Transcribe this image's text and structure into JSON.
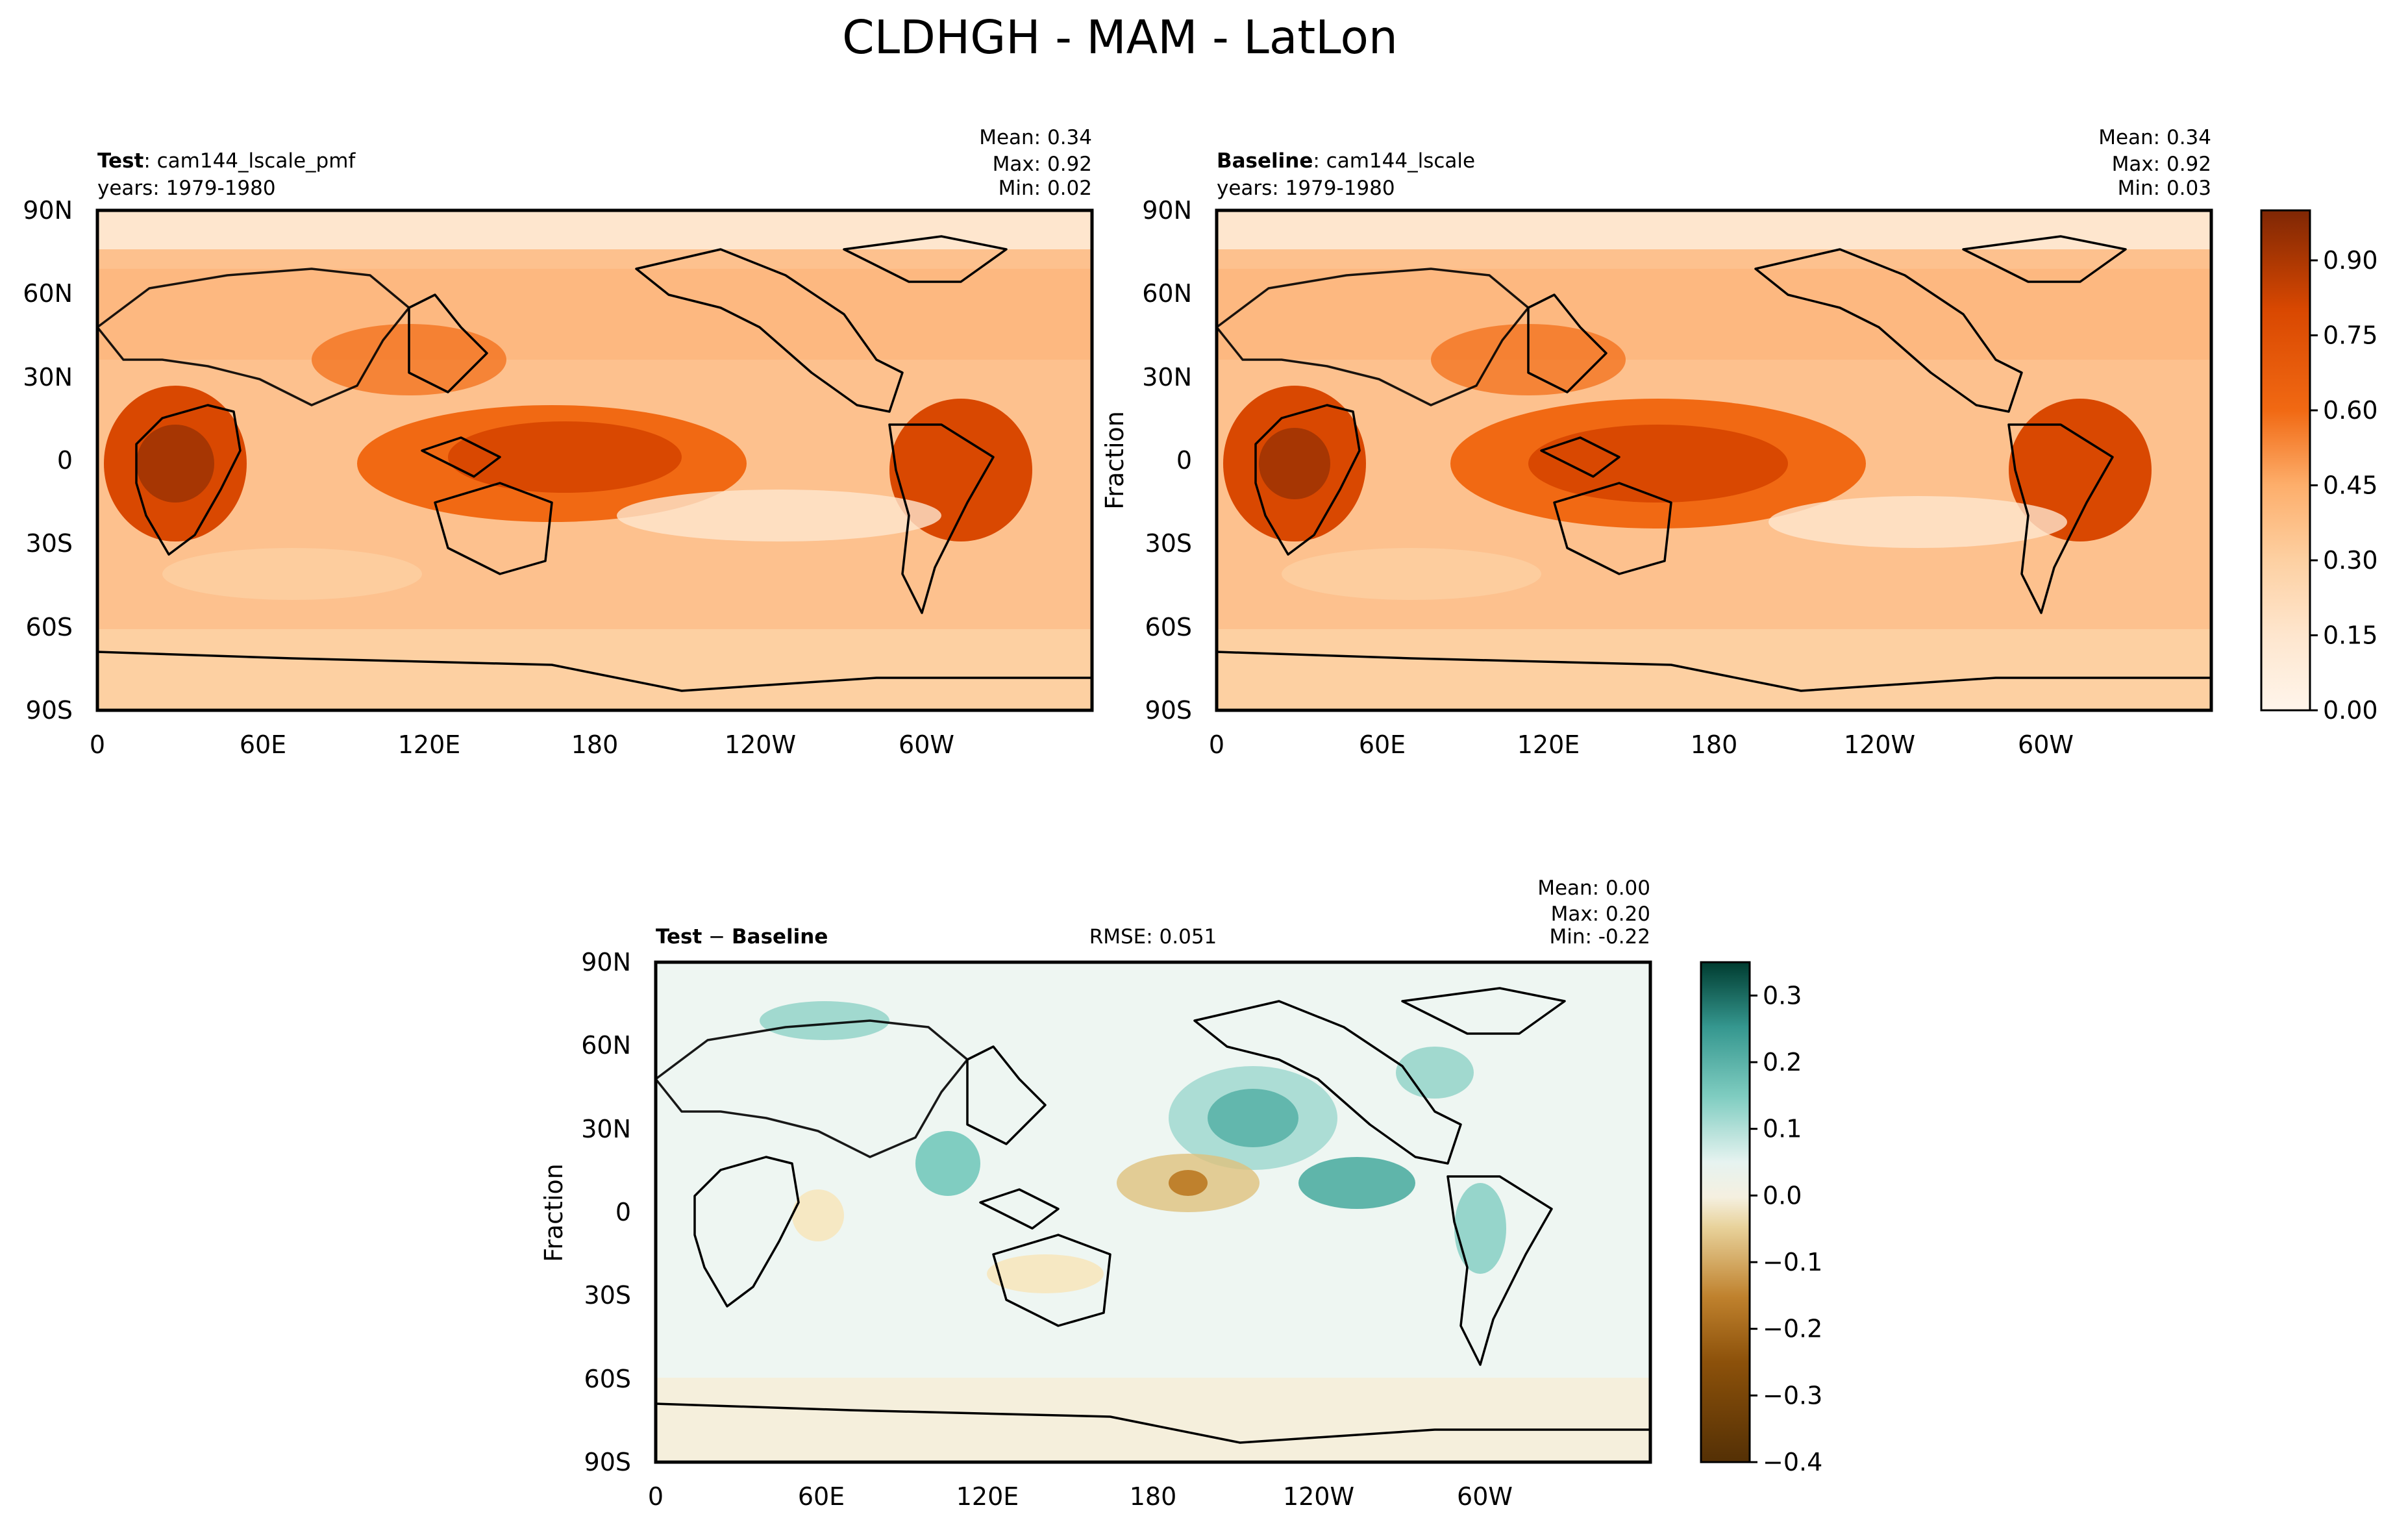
{
  "figure": {
    "title": "CLDHGH - MAM - LatLon"
  },
  "chart_data": [
    {
      "type": "heatmap",
      "id": "test",
      "label_bold": "Test",
      "label_rest": ": cam144_lscale_pmf",
      "years": "years: 1979-1980",
      "stats": {
        "mean": "Mean:  0.34",
        "max": "Max:  0.92",
        "min": "Min:  0.02"
      },
      "ylabel": "",
      "xticks": [
        "0",
        "60E",
        "120E",
        "180",
        "120W",
        "60W"
      ],
      "yticks": [
        "90N",
        "60N",
        "30N",
        "0",
        "30S",
        "60S",
        "90S"
      ],
      "xlim": [
        0,
        360
      ],
      "ylim": [
        -90,
        90
      ]
    },
    {
      "type": "heatmap",
      "id": "baseline",
      "label_bold": "Baseline",
      "label_rest": ": cam144_lscale",
      "years": "years: 1979-1980",
      "stats": {
        "mean": "Mean:  0.34",
        "max": "Max:  0.92",
        "min": "Min:  0.03"
      },
      "ylabel": "Fraction",
      "xticks": [
        "0",
        "60E",
        "120E",
        "180",
        "120W",
        "60W"
      ],
      "yticks": [
        "90N",
        "60N",
        "30N",
        "0",
        "30S",
        "60S",
        "90S"
      ],
      "xlim": [
        0,
        360
      ],
      "ylim": [
        -90,
        90
      ],
      "colorbar": {
        "range": [
          0.0,
          1.0
        ],
        "ticks": [
          "0.90",
          "0.75",
          "0.60",
          "0.45",
          "0.30",
          "0.15",
          "0.00"
        ],
        "tick_values": [
          0.9,
          0.75,
          0.6,
          0.45,
          0.3,
          0.15,
          0.0
        ]
      }
    },
    {
      "type": "heatmap",
      "id": "diff",
      "label_bold": "Test",
      "label_mid": " − ",
      "label_bold2": "Baseline",
      "rmse": "RMSE: 0.051",
      "stats": {
        "mean": "Mean:  0.00",
        "max": "Max:  0.20",
        "min": "Min: -0.22"
      },
      "ylabel": "Fraction",
      "xticks": [
        "0",
        "60E",
        "120E",
        "180",
        "120W",
        "60W"
      ],
      "yticks": [
        "90N",
        "60N",
        "30N",
        "0",
        "30S",
        "60S",
        "90S"
      ],
      "xlim": [
        0,
        360
      ],
      "ylim": [
        -90,
        90
      ],
      "colorbar": {
        "range": [
          -0.4,
          0.35
        ],
        "ticks": [
          "0.3",
          "0.2",
          "0.1",
          "0.0",
          "−0.1",
          "−0.2",
          "−0.3",
          "−0.4"
        ],
        "tick_values": [
          0.3,
          0.2,
          0.1,
          0.0,
          -0.1,
          -0.2,
          -0.3,
          -0.4
        ]
      }
    }
  ],
  "colors": {
    "oranges": [
      "#fff5eb",
      "#fee6ce",
      "#fdd0a2",
      "#fdae6b",
      "#fd8d3c",
      "#f16913",
      "#d94801",
      "#a63603",
      "#7f2704"
    ],
    "brbg_pos": [
      "#f5f5f0",
      "#c7eae5",
      "#80cdc1",
      "#35978f",
      "#01665e",
      "#003c30"
    ],
    "brbg_neg": [
      "#f5f0e0",
      "#f6e8c3",
      "#dfc27d",
      "#bf812d",
      "#8c510a",
      "#543005"
    ]
  }
}
